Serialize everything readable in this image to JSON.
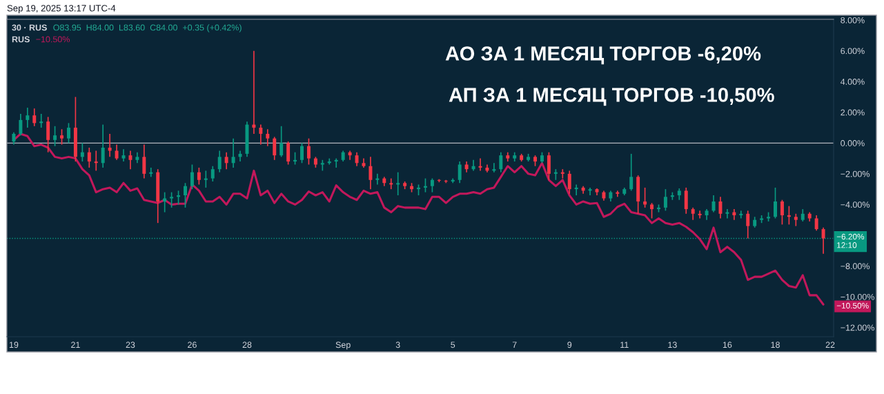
{
  "chart_data": {
    "type": "candlestick",
    "categories": [
      "19",
      null,
      null,
      null,
      null,
      null,
      null,
      null,
      null,
      "21",
      null,
      null,
      null,
      null,
      null,
      null,
      null,
      "23",
      null,
      null,
      null,
      null,
      null,
      null,
      null,
      null,
      "26",
      null,
      null,
      null,
      null,
      null,
      null,
      null,
      "28",
      null,
      null,
      null,
      null,
      null,
      null,
      null,
      null,
      null,
      null,
      null,
      null,
      null,
      "Sep",
      null,
      null,
      null,
      null,
      null,
      null,
      null,
      "3",
      null,
      null,
      null,
      null,
      null,
      null,
      null,
      "5",
      null,
      null,
      null,
      null,
      null,
      null,
      null,
      null,
      "7",
      null,
      null,
      null,
      null,
      null,
      null,
      null,
      "9",
      null,
      null,
      null,
      null,
      null,
      null,
      null,
      "11",
      null,
      null,
      null,
      null,
      null,
      null,
      "13",
      null,
      null,
      null,
      null,
      null,
      null,
      null,
      "16",
      null,
      null,
      null,
      null,
      null,
      null,
      "18",
      null,
      null,
      null,
      null,
      null,
      null,
      null,
      "22"
    ],
    "ohlc": [
      [
        0.1,
        0.7,
        -0.1,
        0.6
      ],
      [
        0.6,
        1.9,
        0.5,
        1.5
      ],
      [
        1.5,
        2.3,
        1.0,
        1.8
      ],
      [
        1.8,
        2.25,
        1.1,
        1.3
      ],
      [
        1.3,
        1.9,
        1.0,
        1.4
      ],
      [
        1.4,
        1.7,
        -0.6,
        0.2
      ],
      [
        0.2,
        1.1,
        -0.2,
        0.5
      ],
      [
        0.5,
        0.9,
        -0.1,
        0.3
      ],
      [
        0.3,
        1.3,
        0.0,
        1.0
      ],
      [
        1.0,
        3.0,
        -1.2,
        -0.9
      ],
      [
        -0.9,
        0.0,
        -1.2,
        -0.6
      ],
      [
        -0.6,
        -0.3,
        -1.6,
        -1.2
      ],
      [
        -1.2,
        -0.5,
        -1.8,
        -1.3
      ],
      [
        -1.3,
        1.2,
        -1.6,
        -0.3
      ],
      [
        -0.3,
        0.6,
        -0.9,
        -0.5
      ],
      [
        -0.5,
        -0.1,
        -1.1,
        -1.0
      ],
      [
        -1.0,
        -0.4,
        -1.2,
        -0.8
      ],
      [
        -0.8,
        -0.5,
        -1.7,
        -1.1
      ],
      [
        -1.1,
        -0.6,
        -1.3,
        -0.9
      ],
      [
        -0.9,
        -0.1,
        -2.3,
        -2.0
      ],
      [
        -2.0,
        -1.6,
        -2.2,
        -1.9
      ],
      [
        -1.9,
        -1.7,
        -5.2,
        -3.8
      ],
      [
        -3.8,
        -3.2,
        -4.5,
        -3.6
      ],
      [
        -3.6,
        -3.2,
        -4.2,
        -3.5
      ],
      [
        -3.5,
        -3.1,
        -4.0,
        -3.4
      ],
      [
        -3.4,
        -2.6,
        -4.2,
        -2.8
      ],
      [
        -2.8,
        -1.4,
        -3.0,
        -1.9
      ],
      [
        -1.9,
        -1.6,
        -2.7,
        -2.4
      ],
      [
        -2.4,
        -1.8,
        -2.9,
        -2.3
      ],
      [
        -2.3,
        -1.5,
        -2.5,
        -1.7
      ],
      [
        -1.7,
        -0.5,
        -1.9,
        -0.9
      ],
      [
        -0.9,
        -0.6,
        -1.7,
        -1.3
      ],
      [
        -1.3,
        0.3,
        -1.6,
        -0.9
      ],
      [
        -0.9,
        -0.5,
        -1.2,
        -0.7
      ],
      [
        -0.7,
        1.4,
        -0.9,
        1.2
      ],
      [
        1.2,
        6.0,
        0.6,
        1.0
      ],
      [
        1.0,
        1.2,
        -0.1,
        0.6
      ],
      [
        0.6,
        0.9,
        -0.2,
        0.3
      ],
      [
        0.3,
        0.4,
        -1.1,
        -0.8
      ],
      [
        -0.8,
        1.1,
        -0.9,
        0.0
      ],
      [
        0.0,
        0.1,
        -1.4,
        -1.2
      ],
      [
        -1.2,
        -0.6,
        -1.4,
        -1.1
      ],
      [
        -1.1,
        0.0,
        -1.3,
        -0.2
      ],
      [
        -0.2,
        0.3,
        -1.4,
        -1.0
      ],
      [
        -1.0,
        -0.9,
        -1.6,
        -1.4
      ],
      [
        -1.4,
        -1.1,
        -1.8,
        -1.3
      ],
      [
        -1.3,
        -1.0,
        -1.4,
        -1.2
      ],
      [
        -1.2,
        -1.0,
        -1.6,
        -1.1
      ],
      [
        -1.1,
        -0.5,
        -1.2,
        -0.6
      ],
      [
        -0.6,
        -0.5,
        -1.1,
        -0.8
      ],
      [
        -0.8,
        -0.6,
        -1.5,
        -1.3
      ],
      [
        -1.3,
        -1.0,
        -1.6,
        -1.5
      ],
      [
        -1.5,
        -0.9,
        -3.0,
        -2.4
      ],
      [
        -2.4,
        -2.0,
        -2.7,
        -2.3
      ],
      [
        -2.3,
        -2.2,
        -2.8,
        -2.6
      ],
      [
        -2.6,
        -2.3,
        -3.0,
        -2.7
      ],
      [
        -2.7,
        -1.9,
        -3.4,
        -2.6
      ],
      [
        -2.6,
        -2.5,
        -3.0,
        -2.8
      ],
      [
        -2.8,
        -2.6,
        -3.2,
        -3.0
      ],
      [
        -3.0,
        -2.7,
        -3.4,
        -2.9
      ],
      [
        -2.9,
        -2.3,
        -3.2,
        -2.8
      ],
      [
        -2.8,
        -2.3,
        -3.2,
        -2.4
      ],
      [
        -2.4,
        -2.35,
        -2.55,
        -2.45
      ],
      [
        -2.45,
        -2.4,
        -2.6,
        -2.5
      ],
      [
        -2.5,
        -2.3,
        -2.6,
        -2.4
      ],
      [
        -2.4,
        -1.2,
        -2.6,
        -1.4
      ],
      [
        -1.4,
        -1.2,
        -1.9,
        -1.7
      ],
      [
        -1.7,
        -1.1,
        -1.8,
        -1.5
      ],
      [
        -1.5,
        -1.0,
        -1.8,
        -1.6
      ],
      [
        -1.6,
        -1.4,
        -1.9,
        -1.8
      ],
      [
        -1.8,
        -1.3,
        -1.9,
        -1.7
      ],
      [
        -1.7,
        -0.6,
        -1.9,
        -0.8
      ],
      [
        -0.8,
        -0.6,
        -1.2,
        -1.0
      ],
      [
        -1.0,
        -0.6,
        -1.2,
        -0.8
      ],
      [
        -0.8,
        -0.7,
        -1.2,
        -1.1
      ],
      [
        -1.1,
        -0.7,
        -1.2,
        -0.9
      ],
      [
        -0.9,
        -0.8,
        -1.5,
        -1.2
      ],
      [
        -1.2,
        -0.6,
        -1.3,
        -0.8
      ],
      [
        -0.8,
        -0.6,
        -2.4,
        -2.0
      ],
      [
        -2.0,
        -1.7,
        -2.4,
        -1.9
      ],
      [
        -1.9,
        -1.7,
        -2.3,
        -2.0
      ],
      [
        -2.0,
        -1.8,
        -3.3,
        -3.0
      ],
      [
        -3.0,
        -2.7,
        -3.4,
        -2.9
      ],
      [
        -2.9,
        -2.8,
        -3.3,
        -3.1
      ],
      [
        -3.1,
        -2.9,
        -3.4,
        -3.0
      ],
      [
        -3.0,
        -2.95,
        -3.4,
        -3.2
      ],
      [
        -3.2,
        -3.1,
        -3.75,
        -3.6
      ],
      [
        -3.6,
        -3.1,
        -3.8,
        -3.2
      ],
      [
        -3.2,
        -3.1,
        -3.5,
        -3.3
      ],
      [
        -3.3,
        -2.9,
        -3.4,
        -3.0
      ],
      [
        -3.0,
        -0.7,
        -3.1,
        -2.2
      ],
      [
        -2.2,
        -2.1,
        -4.6,
        -3.8
      ],
      [
        -3.8,
        -2.9,
        -4.2,
        -4.0
      ],
      [
        -4.0,
        -3.9,
        -4.9,
        -4.3
      ],
      [
        -4.3,
        -4.0,
        -4.5,
        -4.2
      ],
      [
        -4.2,
        -3.0,
        -4.4,
        -3.5
      ],
      [
        -3.5,
        -3.2,
        -3.7,
        -3.4
      ],
      [
        -3.4,
        -2.95,
        -3.7,
        -3.1
      ],
      [
        -3.1,
        -2.9,
        -4.6,
        -4.3
      ],
      [
        -4.3,
        -4.2,
        -5.0,
        -4.6
      ],
      [
        -4.6,
        -4.4,
        -4.9,
        -4.7
      ],
      [
        -4.7,
        -4.3,
        -5.0,
        -4.4
      ],
      [
        -4.4,
        -3.4,
        -4.5,
        -3.8
      ],
      [
        -3.8,
        -3.5,
        -4.9,
        -4.6
      ],
      [
        -4.6,
        -4.3,
        -4.9,
        -4.5
      ],
      [
        -4.5,
        -4.3,
        -5.0,
        -4.7
      ],
      [
        -4.7,
        -4.4,
        -4.9,
        -4.6
      ],
      [
        -4.6,
        -4.4,
        -6.2,
        -5.4
      ],
      [
        -5.4,
        -4.8,
        -5.5,
        -5.0
      ],
      [
        -5.0,
        -4.7,
        -5.2,
        -4.9
      ],
      [
        -4.9,
        -4.5,
        -5.1,
        -4.8
      ],
      [
        -4.8,
        -2.9,
        -4.9,
        -3.8
      ],
      [
        -3.8,
        -3.7,
        -5.3,
        -4.7
      ],
      [
        -4.7,
        -4.1,
        -5.3,
        -4.8
      ],
      [
        -4.8,
        -4.6,
        -5.4,
        -5.0
      ],
      [
        -5.0,
        -4.3,
        -5.1,
        -4.6
      ],
      [
        -4.6,
        -4.5,
        -5.1,
        -4.9
      ],
      [
        -4.9,
        -4.7,
        -5.7,
        -5.6
      ],
      [
        -5.6,
        -5.5,
        -7.2,
        -6.2
      ],
      null
    ],
    "colors": [
      "#089981",
      "#089981",
      "#089981",
      "#f23645",
      "#089981",
      "#f23645",
      "#089981",
      "#f23645",
      "#089981",
      "#f23645",
      "#089981",
      "#f23645",
      "#f23645",
      "#089981",
      "#f23645",
      "#f23645",
      "#089981",
      "#f23645",
      "#089981",
      "#f23645",
      "#089981",
      "#f23645",
      "#089981",
      "#089981",
      "#089981",
      "#089981",
      "#089981",
      "#f23645",
      "#089981",
      "#089981",
      "#089981",
      "#f23645",
      "#089981",
      "#089981",
      "#089981",
      "#f23645",
      "#f23645",
      "#f23645",
      "#f23645",
      "#089981",
      "#f23645",
      "#089981",
      "#089981",
      "#f23645",
      "#f23645",
      "#089981",
      "#089981",
      "#089981",
      "#089981",
      "#f23645",
      "#f23645",
      "#f23645",
      "#f23645",
      "#089981",
      "#f23645",
      "#f23645",
      "#089981",
      "#f23645",
      "#f23645",
      "#089981",
      "#089981",
      "#089981",
      "#f23645",
      "#f23645",
      "#089981",
      "#089981",
      "#f23645",
      "#089981",
      "#f23645",
      "#f23645",
      "#089981",
      "#089981",
      "#f23645",
      "#089981",
      "#f23645",
      "#089981",
      "#f23645",
      "#089981",
      "#f23645",
      "#089981",
      "#f23645",
      "#f23645",
      "#089981",
      "#f23645",
      "#089981",
      "#f23645",
      "#f23645",
      "#089981",
      "#f23645",
      "#089981",
      "#089981",
      "#f23645",
      "#f23645",
      "#f23645",
      "#089981",
      "#089981",
      "#089981",
      "#089981",
      "#f23645",
      "#f23645",
      "#f23645",
      "#089981",
      "#089981",
      "#f23645",
      "#089981",
      "#f23645",
      "#089981",
      "#f23645",
      "#089981",
      "#089981",
      "#089981",
      "#089981",
      "#f23645",
      "#f23645",
      "#f23645",
      "#089981",
      "#f23645",
      "#f23645",
      "#f23645",
      null
    ],
    "series": [
      {
        "type": "line",
        "color": "#c2185b",
        "values": [
          0.2,
          0.6,
          0.45,
          -0.2,
          -0.1,
          -0.3,
          -0.9,
          -1.0,
          -0.9,
          -1.0,
          -1.7,
          -2.1,
          -3.2,
          -3.0,
          -2.9,
          -3.2,
          -2.6,
          -3.1,
          -2.95,
          -3.7,
          -3.8,
          -3.9,
          -3.7,
          -4.0,
          -3.95,
          -3.95,
          -2.7,
          -3.1,
          -3.8,
          -3.8,
          -3.5,
          -4.0,
          -3.3,
          -3.3,
          -3.6,
          -1.8,
          -3.4,
          -3.1,
          -3.9,
          -3.3,
          -3.8,
          -4.0,
          -3.7,
          -3.15,
          -3.4,
          -3.2,
          -3.8,
          -2.75,
          -3.2,
          -3.5,
          -3.7,
          -3.1,
          -3.3,
          -3.2,
          -4.2,
          -4.5,
          -4.1,
          -4.2,
          -4.2,
          -4.2,
          -4.3,
          -3.5,
          -3.5,
          -3.9,
          -3.5,
          -3.3,
          -3.3,
          -3.2,
          -3.3,
          -3.0,
          -2.9,
          -2.2,
          -1.5,
          -1.9,
          -1.5,
          -2.0,
          -2.1,
          -1.3,
          -2.4,
          -2.8,
          -2.4,
          -3.4,
          -4.0,
          -3.8,
          -3.95,
          -3.9,
          -4.8,
          -4.6,
          -4.15,
          -3.95,
          -4.5,
          -4.6,
          -4.7,
          -5.2,
          -4.9,
          -5.2,
          -5.3,
          -5.2,
          -5.45,
          -5.8,
          -6.25,
          -6.9,
          -5.5,
          -7.1,
          -6.75,
          -7.1,
          -7.6,
          -8.9,
          -8.7,
          -8.7,
          -8.5,
          -8.3,
          -8.9,
          -9.3,
          -9.4,
          -8.6,
          -9.9,
          -9.9,
          -10.5,
          null
        ]
      }
    ],
    "ylim": [
      -12.6,
      8.05
    ],
    "yticks": [
      {
        "value": -12,
        "label": "−12.00%"
      },
      {
        "value": -10,
        "label": "−10.00%"
      },
      {
        "value": -8,
        "label": "−8.00%"
      },
      {
        "value": -4,
        "label": "−4.00%"
      },
      {
        "value": -2,
        "label": "−2.00%"
      },
      {
        "value": 0,
        "label": "0.00%"
      },
      {
        "value": 2,
        "label": "2.00%"
      },
      {
        "value": 4,
        "label": "4.00%"
      },
      {
        "value": 6,
        "label": "6.00%"
      },
      {
        "value": 8,
        "label": "8.00%"
      }
    ],
    "ref_lines": [
      {
        "axis": "y",
        "value": 0,
        "color": "#b2b5be",
        "line_style": "solid"
      },
      {
        "axis": "y",
        "value": -6.2,
        "label": "−6.20%\n12:10",
        "color": "#089981",
        "line_style": "dotted"
      }
    ],
    "annotations": [
      "Sep 19, 2025 13:17 UTC-4",
      "30 · RUS",
      "O83.95  H84.00  L83.60  C84.00  +0.35 (+0.42%)",
      "RUS",
      "−10.50%",
      "АО ЗА 1 МЕСЯЦ ТОРГОВ -6,20%",
      "АП ЗА 1 МЕСЯЦ ТОРГОВ -10,50%",
      "−10.50%"
    ]
  }
}
